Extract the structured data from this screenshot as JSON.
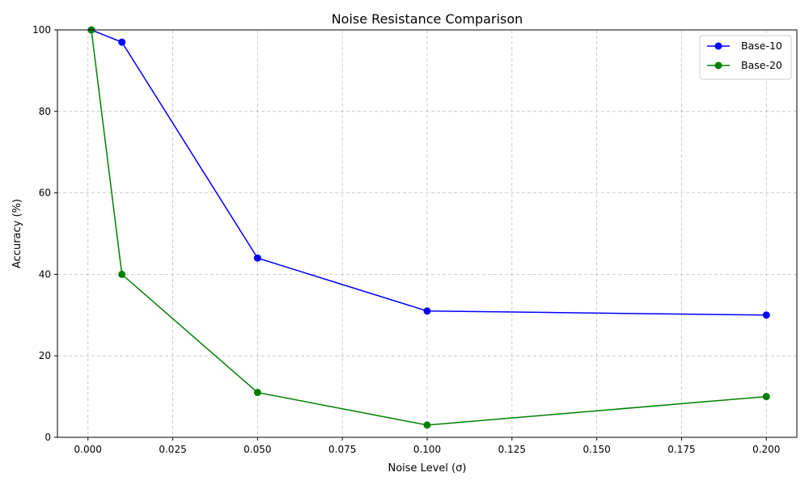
{
  "chart_data": {
    "type": "line",
    "title": "Noise Resistance Comparison",
    "xlabel": "Noise Level (σ)",
    "ylabel": "Accuracy (%)",
    "xlim": [
      -0.009,
      0.209
    ],
    "ylim": [
      0,
      100
    ],
    "xticks": [
      0.0,
      0.025,
      0.05,
      0.075,
      0.1,
      0.125,
      0.15,
      0.175,
      0.2
    ],
    "xtick_labels": [
      "0.000",
      "0.025",
      "0.050",
      "0.075",
      "0.100",
      "0.125",
      "0.150",
      "0.175",
      "0.200"
    ],
    "yticks": [
      0,
      20,
      40,
      60,
      80,
      100
    ],
    "ytick_labels": [
      "0",
      "20",
      "40",
      "60",
      "80",
      "100"
    ],
    "grid": true,
    "legend_position": "top-right",
    "x": [
      0.001,
      0.01,
      0.05,
      0.1,
      0.2
    ],
    "series": [
      {
        "name": "Base-10",
        "color": "#0000ff",
        "marker": "circle",
        "values": [
          100,
          97,
          44,
          31,
          30
        ]
      },
      {
        "name": "Base-20",
        "color": "#008000",
        "marker": "circle",
        "values": [
          100,
          40,
          11,
          3,
          10
        ]
      }
    ]
  }
}
